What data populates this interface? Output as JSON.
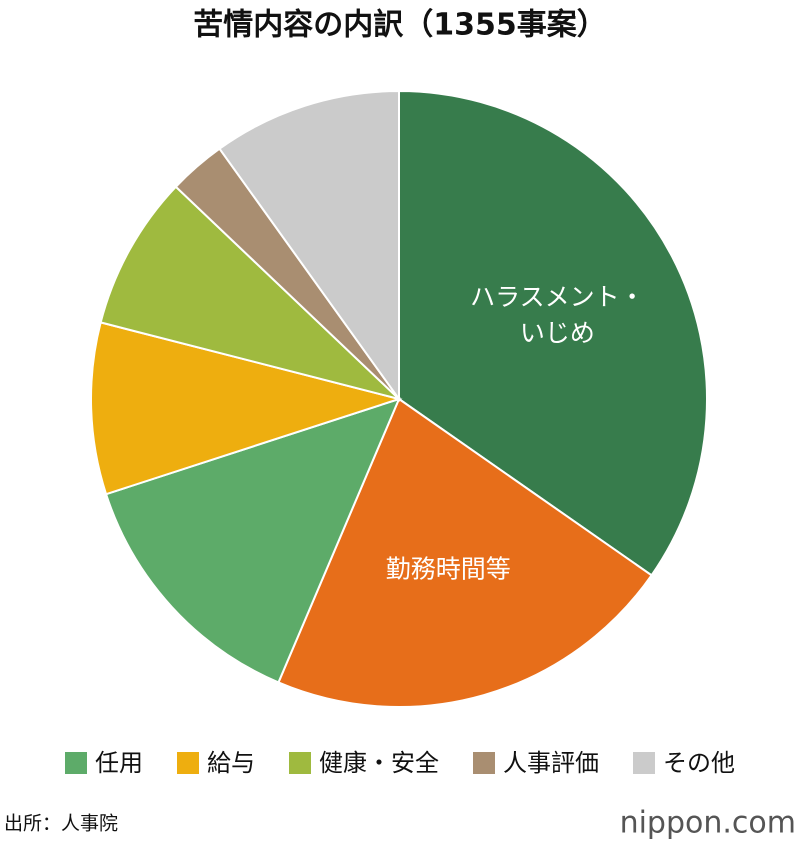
{
  "chart_data": {
    "type": "pie",
    "title": "苦情内容の内訳（1355事案）",
    "categories": [
      "ハラスメント・\nいじめ",
      "勤務時間等",
      "任用",
      "給与",
      "健康・安全",
      "人事評価",
      "その他"
    ],
    "values": [
      34.7,
      21.7,
      13.6,
      9.0,
      8.1,
      3.0,
      9.9
    ],
    "colors": [
      "#377c4c",
      "#e76e1a",
      "#5dab69",
      "#eeae0f",
      "#9fba3f",
      "#a98e71",
      "#cbcbcb"
    ],
    "inside_labels": [
      0,
      1
    ],
    "legend": [
      2,
      3,
      4,
      5,
      6
    ],
    "source": "出所：人事院",
    "logo": "nippon.com"
  }
}
